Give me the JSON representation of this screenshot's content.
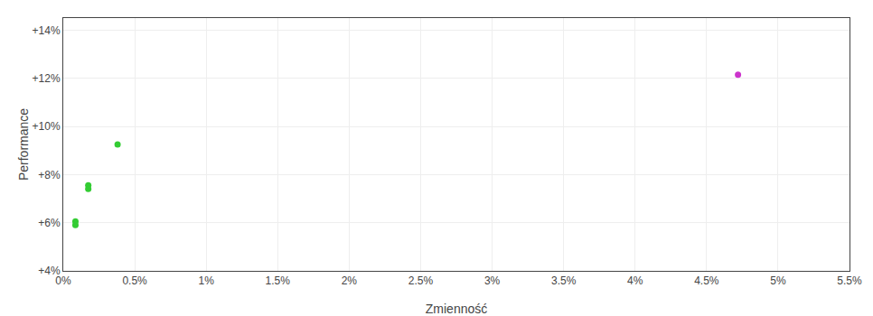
{
  "chart_data": {
    "type": "scatter",
    "x_label": "Zmienność",
    "y_label": "Performance",
    "series": [
      {
        "color": "#33cc33",
        "x": [
          0.00085,
          0.00085,
          0.00175,
          0.00175,
          0.0038
        ],
        "values": [
          0.0605,
          0.059,
          0.0755,
          0.074,
          0.0925
        ]
      },
      {
        "color": "#cc33cc",
        "x": [
          0.0472
        ],
        "values": [
          0.1215
        ]
      }
    ],
    "xlim": [
      0.0,
      0.055
    ],
    "xticks": [
      {
        "value": 0.0,
        "label": "0%"
      },
      {
        "value": 0.005,
        "label": "0.5%"
      },
      {
        "value": 0.01,
        "label": "1%"
      },
      {
        "value": 0.015,
        "label": "1.5%"
      },
      {
        "value": 0.02,
        "label": "2%"
      },
      {
        "value": 0.025,
        "label": "2.5%"
      },
      {
        "value": 0.03,
        "label": "3%"
      },
      {
        "value": 0.035,
        "label": "3.5%"
      },
      {
        "value": 0.04,
        "label": "4%"
      },
      {
        "value": 0.045,
        "label": "4.5%"
      },
      {
        "value": 0.05,
        "label": "5%"
      },
      {
        "value": 0.055,
        "label": "5.5%"
      }
    ],
    "ylim": [
      0.04,
      0.145
    ],
    "yticks": [
      {
        "value": 0.04,
        "label": "+4%"
      },
      {
        "value": 0.06,
        "label": "+6%"
      },
      {
        "value": 0.08,
        "label": "+8%"
      },
      {
        "value": 0.1,
        "label": "+10%"
      },
      {
        "value": 0.12,
        "label": "+12%"
      },
      {
        "value": 0.14,
        "label": "+14%"
      }
    ],
    "grid": true
  }
}
